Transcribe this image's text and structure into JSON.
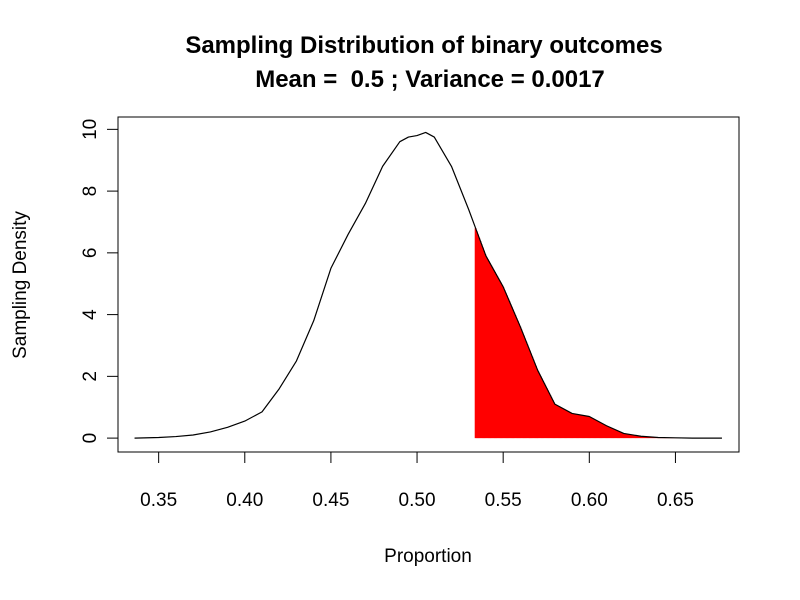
{
  "chart_data": {
    "type": "area",
    "title": "Sampling Distribution of binary outcomes",
    "subtitle": "Mean =  0.5 ; Variance = 0.0017",
    "xlabel": "Proportion",
    "ylabel": "Sampling Density",
    "xlim": [
      0.3264,
      0.6869
    ],
    "ylim": [
      -0.45,
      10.4
    ],
    "x_ticks": [
      "0.35",
      "0.40",
      "0.45",
      "0.50",
      "0.55",
      "0.60",
      "0.65"
    ],
    "y_ticks": [
      "0",
      "2",
      "4",
      "6",
      "8",
      "10"
    ],
    "grid": false,
    "legend": "none",
    "shaded_region": {
      "from": 0.534,
      "to": 0.677,
      "color": "#ff0000"
    },
    "line_color": "#000000",
    "series": [
      {
        "x": [
          0.336,
          0.35,
          0.36,
          0.37,
          0.38,
          0.39,
          0.4,
          0.41,
          0.42,
          0.43,
          0.44,
          0.45,
          0.46,
          0.47,
          0.48,
          0.49,
          0.495,
          0.5,
          0.505,
          0.51,
          0.52,
          0.53,
          0.534,
          0.54,
          0.55,
          0.56,
          0.57,
          0.58,
          0.59,
          0.6,
          0.605,
          0.61,
          0.62,
          0.63,
          0.64,
          0.65,
          0.66,
          0.677
        ],
        "values": [
          0.0,
          0.02,
          0.05,
          0.1,
          0.2,
          0.35,
          0.55,
          0.85,
          1.6,
          2.5,
          3.8,
          5.5,
          6.6,
          7.6,
          8.8,
          9.6,
          9.75,
          9.8,
          9.9,
          9.75,
          8.8,
          7.4,
          6.8,
          5.9,
          4.9,
          3.6,
          2.2,
          1.1,
          0.8,
          0.7,
          0.55,
          0.4,
          0.15,
          0.06,
          0.02,
          0.01,
          0.0,
          0.0
        ]
      }
    ]
  }
}
